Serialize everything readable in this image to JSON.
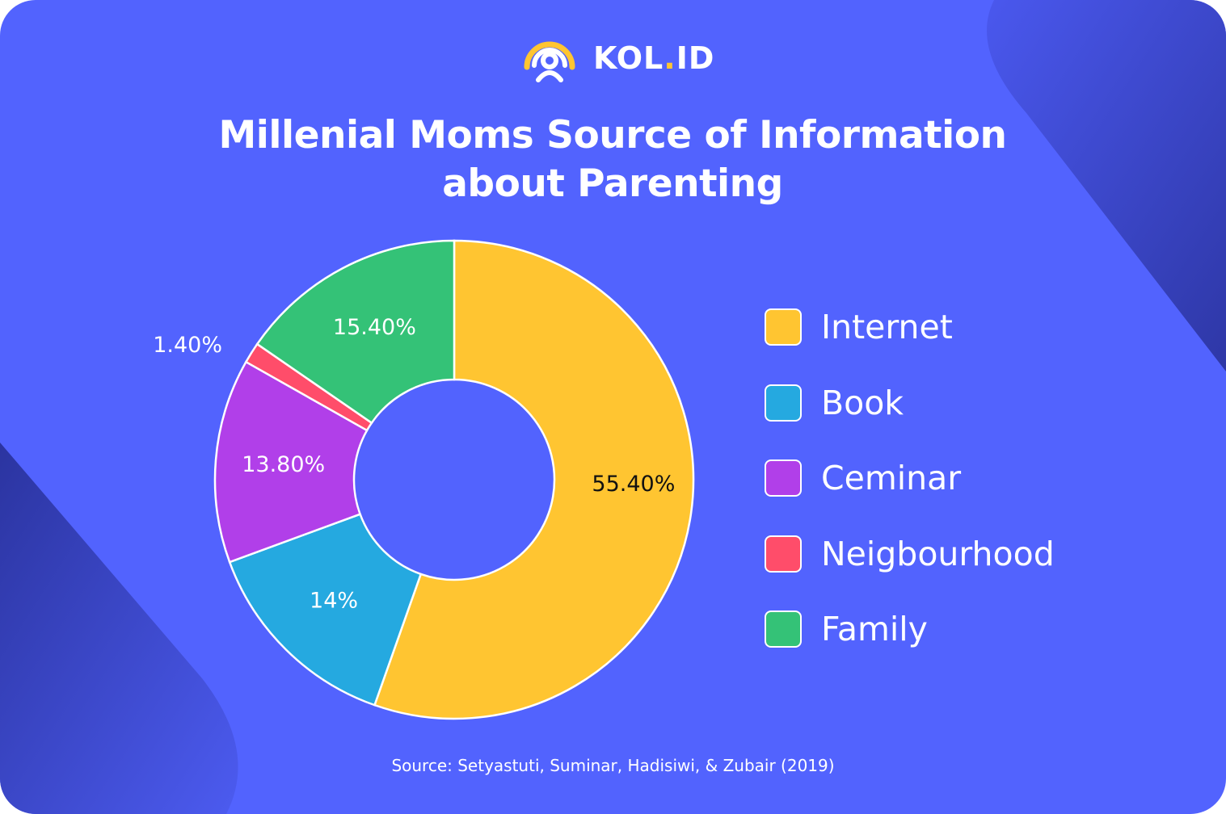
{
  "brand": {
    "name_prefix": "KOL",
    "name_dot": ".",
    "name_suffix": "ID",
    "logo_icon": "kol-logo-icon",
    "logo_colors": {
      "arc": "#ffc531",
      "person": "#ffffff"
    }
  },
  "title_lines": [
    "Millenial Moms Source of Information",
    "about Parenting"
  ],
  "chart_data": {
    "type": "pie",
    "style": "donut",
    "title": "Millenial Moms Source of Information about Parenting",
    "categories": [
      "Internet",
      "Book",
      "Ceminar",
      "Neigbourhood",
      "Family"
    ],
    "values": [
      55.4,
      14,
      13.8,
      1.4,
      15.4
    ],
    "value_labels": [
      "55.40%",
      "14%",
      "13.80%",
      "1.40%",
      "15.40%"
    ],
    "colors": [
      "#ffc531",
      "#25a9e0",
      "#b13fe9",
      "#ff4d6a",
      "#34c277"
    ],
    "label_colors": [
      "#111111",
      "#ffffff",
      "#ffffff",
      "#ffffff",
      "#ffffff"
    ],
    "start": "top",
    "direction": "clockwise",
    "legend": "right"
  },
  "source": "Source: Setyastuti, Suminar, Hadisiwi, & Zubair (2019)",
  "colors": {
    "background": "#5263fe",
    "shape_dark": "#2f3aa8"
  }
}
